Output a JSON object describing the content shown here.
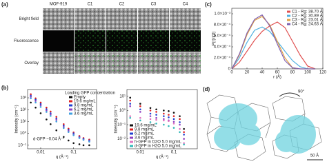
{
  "panels": {
    "a": "(a)",
    "b": "(b)",
    "c": "(c)",
    "d": "(d)"
  },
  "panel_a": {
    "columns": [
      "MOF-919",
      "C1",
      "C2",
      "C3",
      "C4"
    ],
    "rows": [
      "Bright field",
      "Fluorescence",
      "Overlay"
    ]
  },
  "panel_d": {
    "rotation": "90°",
    "scale_bar": "50 Å"
  },
  "chart_data": [
    {
      "type": "scatter",
      "xlabel": "q (Å⁻¹)",
      "ylabel": "Intensity (cm⁻¹)",
      "xscale": "log",
      "yscale": "log",
      "xlim": [
        0.004,
        0.5
      ],
      "ylim": [
        0.05,
        5000
      ],
      "xticks": [
        0.01,
        0.1
      ],
      "yticks": [
        {
          "value": 0.1,
          "label": "10⁻¹"
        },
        {
          "value": 1,
          "label": "10⁰"
        },
        {
          "value": 10,
          "label": "10¹"
        },
        {
          "value": 100,
          "label": "10²"
        },
        {
          "value": 1000,
          "label": "10³"
        }
      ],
      "legend": "upper right",
      "legend_title": "Loading GFP concentration",
      "annotation": "d-GFP ~0.04 Å⁻¹",
      "x": [
        0.005,
        0.007,
        0.01,
        0.015,
        0.02,
        0.03,
        0.05,
        0.07,
        0.1,
        0.15,
        0.2,
        0.3
      ],
      "series": [
        {
          "name": "Empty",
          "color": "#111111",
          "values": [
            400,
            150,
            50,
            15,
            6,
            1.8,
            0.5,
            0.25,
            0.15,
            0.12,
            0.1,
            0.1
          ]
        },
        {
          "name": "19.6 mg/mL",
          "color": "#e02020",
          "values": [
            2000,
            900,
            400,
            150,
            70,
            25,
            6,
            2.5,
            1.2,
            0.6,
            0.4,
            0.3
          ]
        },
        {
          "name": "9.8 mg/mL",
          "color": "#2040d0",
          "values": [
            1500,
            700,
            300,
            110,
            50,
            18,
            4.5,
            2,
            1,
            0.5,
            0.35,
            0.25
          ]
        },
        {
          "name": "6.2 mg/mL",
          "color": "#9040c0",
          "values": [
            1200,
            550,
            230,
            85,
            40,
            14,
            3.5,
            1.6,
            0.8,
            0.45,
            0.3,
            0.22
          ]
        },
        {
          "name": "3.6 mg/mL",
          "color": "#40a0e0",
          "values": [
            900,
            400,
            170,
            65,
            30,
            10,
            2.8,
            1.3,
            0.7,
            0.4,
            0.28,
            0.2
          ]
        }
      ]
    },
    {
      "type": "scatter",
      "xlabel": "q (Å⁻¹)",
      "ylabel": "Intensity (cm⁻¹)",
      "xscale": "log",
      "yscale": "log",
      "xlim": [
        0.004,
        0.5
      ],
      "ylim": [
        0.002,
        30
      ],
      "xticks": [
        0.01,
        0.1
      ],
      "yticks": [
        {
          "value": 0.01,
          "label": "10⁻²"
        },
        {
          "value": 0.1,
          "label": "10⁻¹"
        },
        {
          "value": 1,
          "label": "10⁰"
        },
        {
          "value": 10,
          "label": "10¹"
        }
      ],
      "legend": "lower left",
      "x": [
        0.005,
        0.01,
        0.02,
        0.03,
        0.05,
        0.07,
        0.1,
        0.15,
        0.2
      ],
      "series": [
        {
          "name": "19.6 mg/mL",
          "color": "#111111",
          "values": [
            8,
            3,
            1.5,
            1.2,
            1,
            0.9,
            0.7,
            0.4,
            0.05
          ]
        },
        {
          "name": "9.8 mg/mL",
          "color": "#e02020",
          "values": [
            5,
            2,
            1,
            0.8,
            0.6,
            0.5,
            0.4,
            0.25,
            0.03
          ]
        },
        {
          "name": "6.2 mg/mL",
          "color": "#2040d0",
          "values": [
            3,
            1.2,
            0.6,
            0.5,
            0.4,
            0.33,
            0.25,
            0.15,
            0.02
          ]
        },
        {
          "name": "3.6 mg/mL",
          "color": "#9040c0",
          "values": [
            2,
            0.8,
            0.4,
            0.3,
            0.25,
            0.2,
            0.16,
            0.1,
            0.01
          ]
        },
        {
          "name": "h-GFP in D2O 5.0 mg/mL",
          "color": "#e070c0",
          "values": [
            0.4,
            0.3,
            0.25,
            0.22,
            0.2,
            0.18,
            0.12,
            0.05,
            0.005
          ]
        },
        {
          "name": "d-GFP in H2O 5.0 mg/mL",
          "color": "#30b8b8",
          "values": [
            0.3,
            0.2,
            0.15,
            0.12,
            0.1,
            0.08,
            0.06,
            0.03,
            0.004
          ]
        }
      ]
    },
    {
      "type": "line",
      "xlabel": "r (Å)",
      "ylabel": "P(r)/I(0)",
      "xlim": [
        0,
        120
      ],
      "ylim": [
        0,
        0.0011
      ],
      "xticks": [
        0,
        20,
        40,
        60,
        80,
        100,
        120
      ],
      "yticks": [
        0,
        {
          "value": 0.0002,
          "label": "2.0×10⁻⁴"
        },
        {
          "value": 0.0004,
          "label": "4.0×10⁻⁴"
        },
        {
          "value": 0.0006,
          "label": "6.0×10⁻⁴"
        },
        {
          "value": 0.0008,
          "label": "8.0×10⁻⁴"
        },
        {
          "value": 0.001,
          "label": "1.0×10⁻³"
        }
      ],
      "legend": "upper right",
      "x": [
        0,
        10,
        20,
        30,
        40,
        50,
        60,
        70,
        80,
        90,
        100,
        110
      ],
      "series": [
        {
          "name": "C1 - Rg: 38.70 Å",
          "color": "#e05050",
          "values": [
            0,
            0.00012,
            0.00032,
            0.00052,
            0.00068,
            0.00078,
            0.00085,
            0.00075,
            0.0005,
            0.00025,
            5e-05,
            0
          ]
        },
        {
          "name": "C2 - Rg: 30.89 Å",
          "color": "#50b0e0",
          "values": [
            0,
            0.0002,
            0.00048,
            0.0007,
            0.00076,
            0.00068,
            0.0005,
            0.00032,
            0.00015,
            4e-05,
            0,
            0
          ]
        },
        {
          "name": "C3 - Rg: 23.01 Å",
          "color": "#e0a040",
          "values": [
            0,
            0.00025,
            0.00062,
            0.00088,
            0.00095,
            0.0008,
            0.0005,
            0.0002,
            2e-05,
            0,
            0,
            0
          ]
        },
        {
          "name": "C4 - Rg: 24.63 Å",
          "color": "#8060b0",
          "values": [
            0,
            0.00027,
            0.00065,
            0.0009,
            0.00098,
            0.00078,
            0.00045,
            0.00015,
            2e-05,
            0,
            0,
            0
          ]
        }
      ]
    }
  ]
}
